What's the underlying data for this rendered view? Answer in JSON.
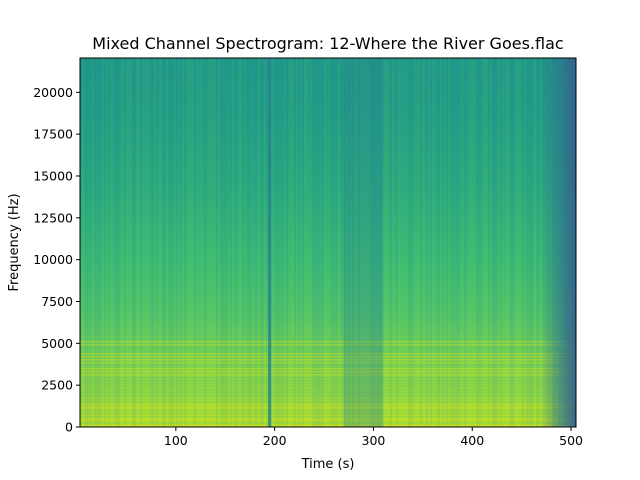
{
  "chart_data": {
    "type": "heatmap",
    "title": "Mixed Channel Spectrogram: 12-Where the River Goes.flac",
    "xlabel": "Time (s)",
    "ylabel": "Frequency (Hz)",
    "xlim": [
      3,
      505
    ],
    "ylim": [
      0,
      22050
    ],
    "x_ticks": [
      100,
      200,
      300,
      400,
      500
    ],
    "y_ticks": [
      0,
      2500,
      5000,
      7500,
      10000,
      12500,
      15000,
      17500,
      20000
    ],
    "colormap": "viridis",
    "grid": false,
    "colors": {
      "high_energy": "#b5de2b",
      "mid_energy": "#35b779",
      "low_energy": "#26828e",
      "lowest_energy": "#31688e"
    },
    "features": [
      {
        "kind": "vertical_line",
        "time": 195,
        "intensity": "low"
      },
      {
        "kind": "quiet_band",
        "time_range": [
          270,
          310
        ],
        "intensity": "low"
      },
      {
        "kind": "fade_out",
        "time_range": [
          470,
          505
        ],
        "intensity": "low"
      }
    ]
  }
}
